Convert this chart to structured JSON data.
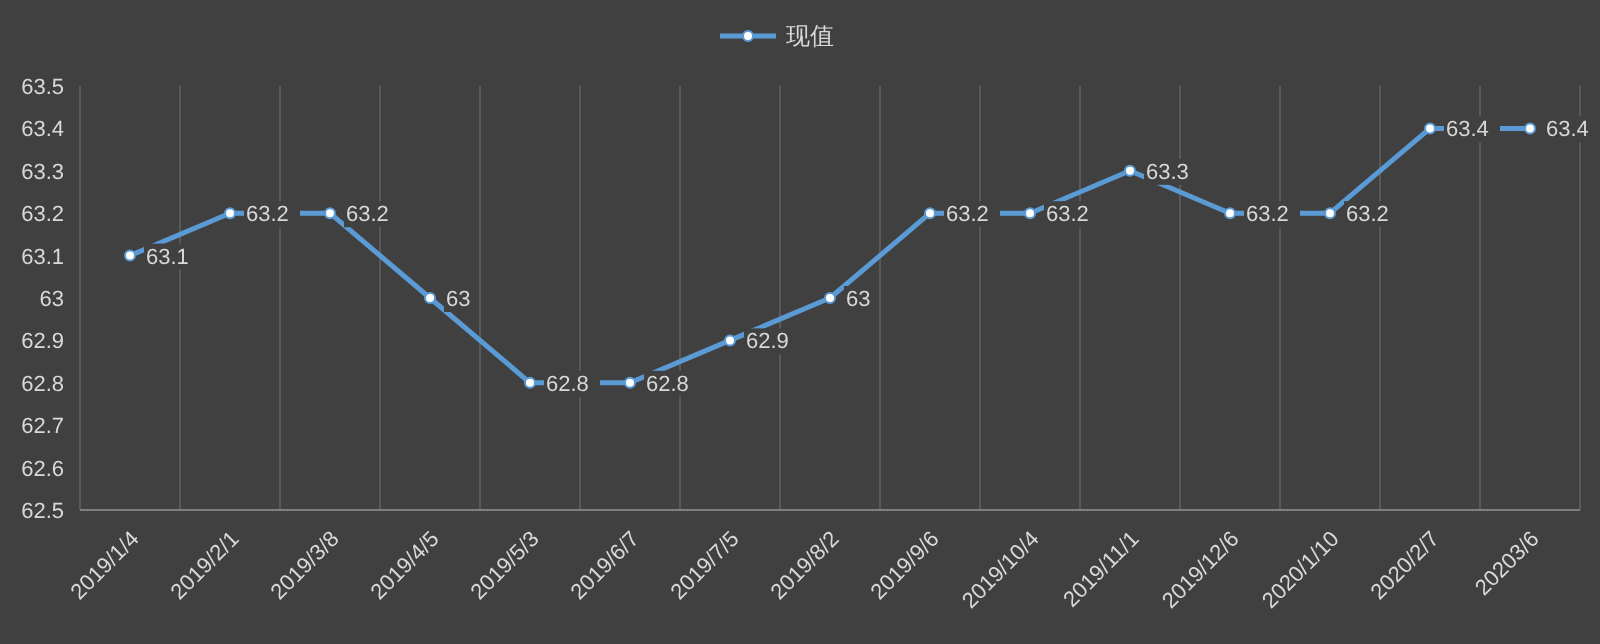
{
  "chart_data": {
    "type": "line",
    "categories": [
      "2019/1/4",
      "2019/2/1",
      "2019/3/8",
      "2019/4/5",
      "2019/5/3",
      "2019/6/7",
      "2019/7/5",
      "2019/8/2",
      "2019/9/6",
      "2019/10/4",
      "2019/11/1",
      "2019/12/6",
      "2020/1/10",
      "2020/2/7",
      "20203/6"
    ],
    "series": [
      {
        "name": "现值",
        "color": "#5b9bd5",
        "values": [
          63.1,
          63.2,
          63.2,
          63,
          62.8,
          62.8,
          62.9,
          63,
          63.2,
          63.2,
          63.3,
          63.2,
          63.2,
          63.4,
          63.4
        ]
      }
    ],
    "ylim": [
      62.5,
      63.5
    ],
    "yticks": [
      62.5,
      62.6,
      62.7,
      62.8,
      62.9,
      63,
      63.1,
      63.2,
      63.3,
      63.4,
      63.5
    ],
    "grid": "x",
    "legend": "top",
    "marker": "circle",
    "line_style": "solid",
    "data_labels": true
  }
}
